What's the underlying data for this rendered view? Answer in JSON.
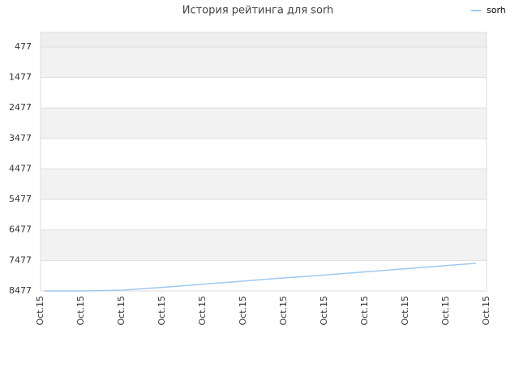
{
  "chart_data": {
    "type": "line",
    "title": "История рейтинга для sorh",
    "categories": [
      "Oct.15",
      "Oct.15",
      "Oct.15",
      "Oct.15",
      "Oct.15",
      "Oct.15",
      "Oct.15",
      "Oct.15",
      "Oct.15",
      "Oct.15",
      "Oct.15",
      "Oct.15"
    ],
    "series": [
      {
        "name": "sorh",
        "color": "#9ec9f0",
        "values": [
          8477,
          8477,
          8450,
          8360,
          8260,
          8160,
          8060,
          7970,
          7870,
          7770,
          7670,
          7570
        ]
      }
    ],
    "ylim": [
      8477,
      0
    ],
    "yticks": [
      477,
      1477,
      2477,
      3477,
      4477,
      5477,
      6477,
      7477,
      8477
    ],
    "grid": true,
    "legend": "top-right"
  }
}
